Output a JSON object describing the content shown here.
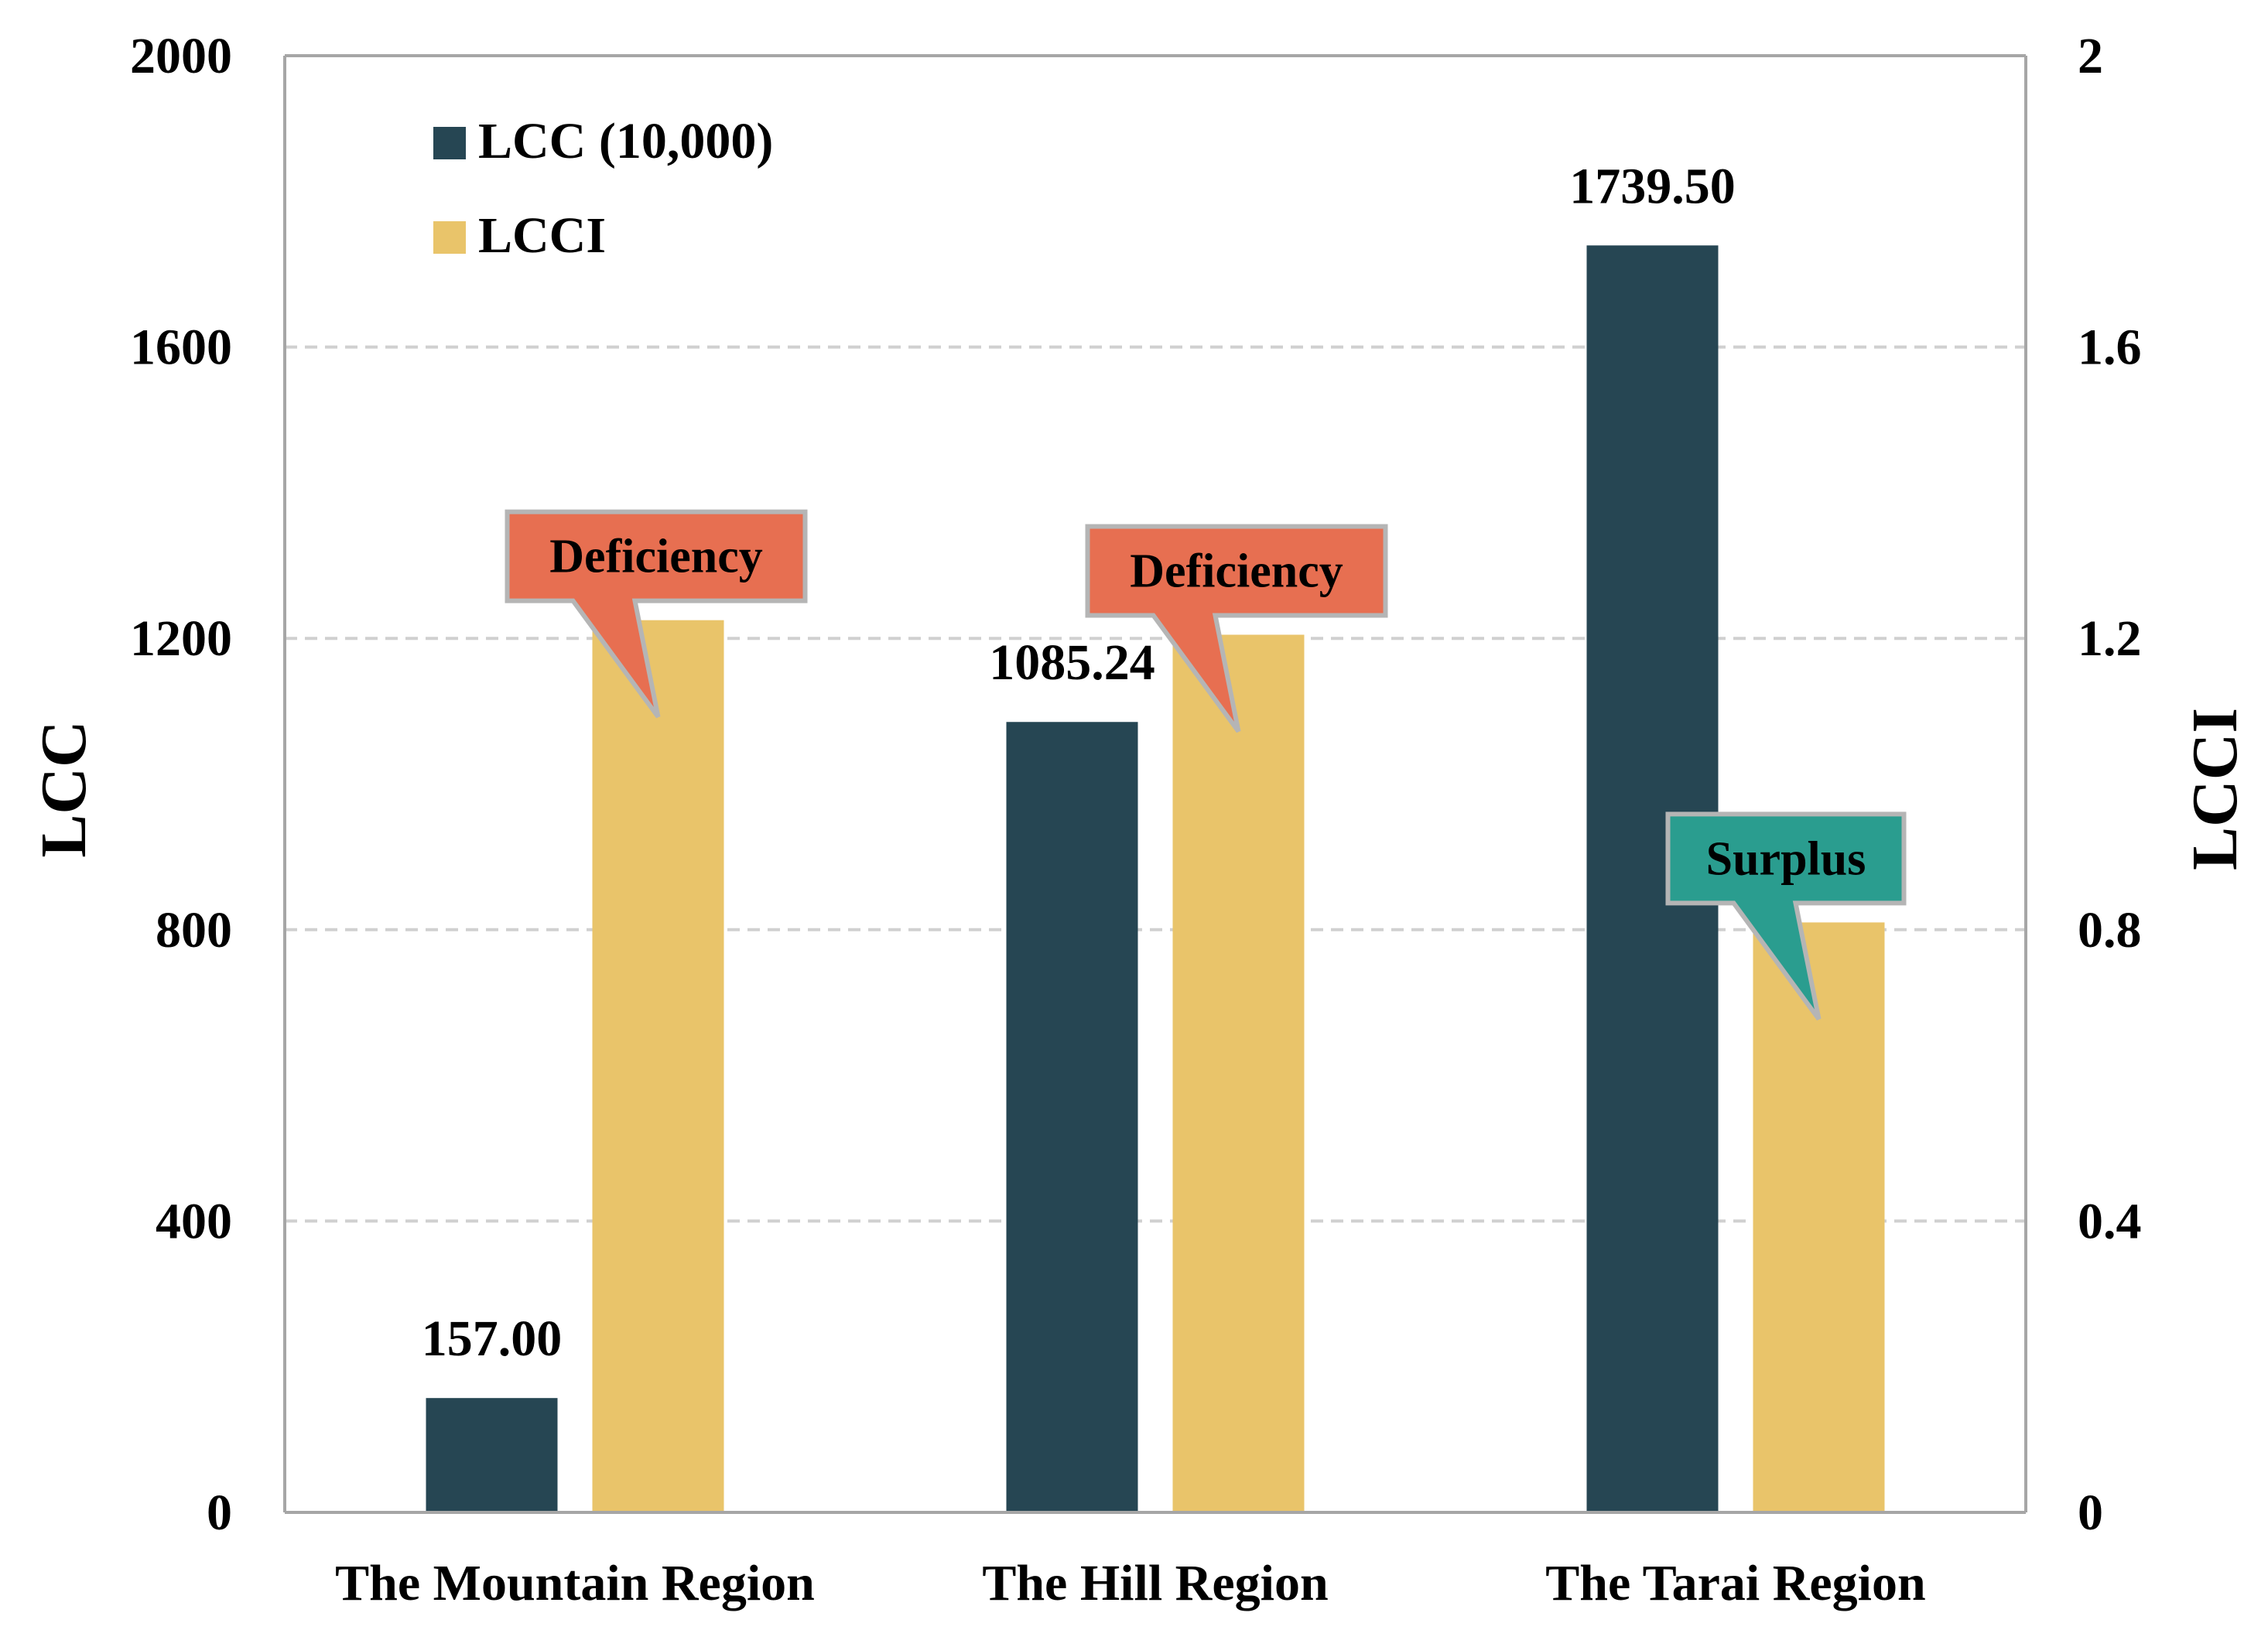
{
  "chart_data": {
    "type": "bar",
    "categories": [
      "The Mountain Region",
      "The Hill Region",
      "The Tarai Region"
    ],
    "series": [
      {
        "name": "LCC (10,000)",
        "axis": "left",
        "values": [
          157.0,
          1085.24,
          1739.5
        ],
        "color": "#264653",
        "labels": [
          "157.00",
          "1085.24",
          "1739.50"
        ]
      },
      {
        "name": "LCCI",
        "axis": "right",
        "values": [
          1.225,
          1.205,
          0.81
        ],
        "color": "#e9c46a"
      }
    ],
    "ylabel_left": "LCC",
    "ylabel_right": "LCCI",
    "ylim_left": [
      0,
      2000
    ],
    "ylim_right": [
      0,
      2
    ],
    "yticks_left": [
      "0",
      "400",
      "800",
      "1200",
      "1600",
      "2000"
    ],
    "yticks_right": [
      "0",
      "0.4",
      "0.8",
      "1.2",
      "1.6",
      "2"
    ],
    "grid": "dashed horizontal",
    "legend_position": "top-left",
    "annotations": [
      {
        "text": "Deficiency",
        "category": "The Mountain Region",
        "type": "deficiency",
        "color": "#e76f51"
      },
      {
        "text": "Deficiency",
        "category": "The Hill Region",
        "type": "deficiency",
        "color": "#e76f51"
      },
      {
        "text": "Surplus",
        "category": "The Tarai Region",
        "type": "surplus",
        "color": "#2a9d8f"
      }
    ]
  }
}
